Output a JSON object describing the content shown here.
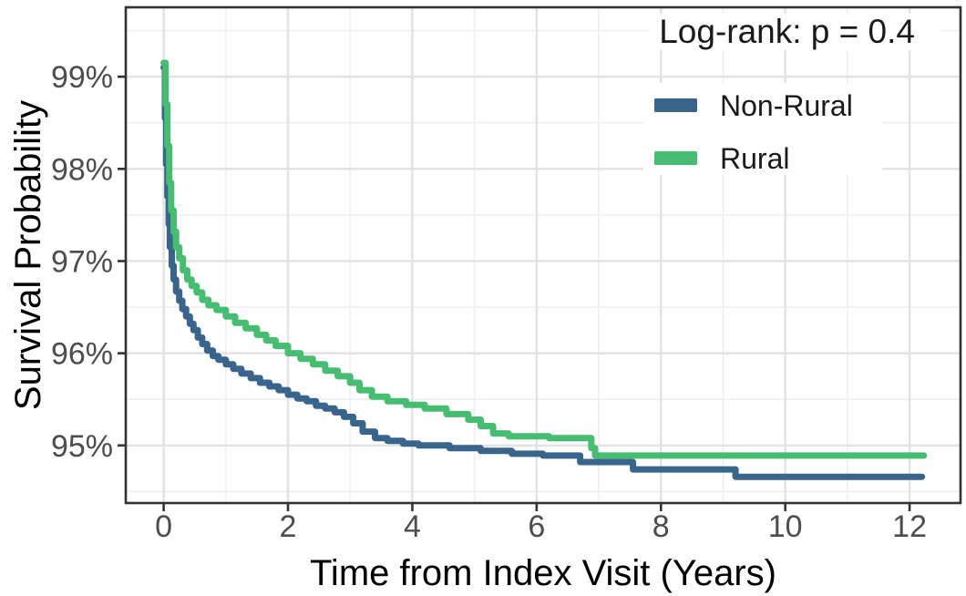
{
  "chart_data": {
    "type": "line",
    "subtype": "kaplan-meier-step",
    "title": "",
    "xlabel": "Time from Index Visit (Years)",
    "ylabel": "Survival Probability",
    "annotation": "Log-rank: p = 0.4",
    "legend_position": "inside-top-right",
    "grid": "major+minor",
    "x_ticks": [
      0,
      2,
      4,
      6,
      8,
      10,
      12
    ],
    "x_minor_ticks": [
      1,
      3,
      5,
      7,
      9,
      11
    ],
    "y_ticks": [
      95,
      96,
      97,
      98,
      99
    ],
    "y_tick_labels": [
      "95%",
      "96%",
      "97%",
      "98%",
      "99%"
    ],
    "y_minor_ticks": [
      94.5,
      95.5,
      96.5,
      97.5,
      98.5,
      99.5
    ],
    "xlim": [
      -0.61,
      12.82
    ],
    "ylim": [
      94.375,
      99.753
    ],
    "series": [
      {
        "name": "Non-Rural",
        "color": "#39648C",
        "points": [
          [
            0.0,
            99.1
          ],
          [
            0.02,
            98.55
          ],
          [
            0.04,
            98.05
          ],
          [
            0.06,
            97.7
          ],
          [
            0.08,
            97.4
          ],
          [
            0.1,
            97.15
          ],
          [
            0.13,
            96.95
          ],
          [
            0.16,
            96.8
          ],
          [
            0.2,
            96.67
          ],
          [
            0.25,
            96.57
          ],
          [
            0.3,
            96.48
          ],
          [
            0.36,
            96.4
          ],
          [
            0.42,
            96.32
          ],
          [
            0.48,
            96.25
          ],
          [
            0.55,
            96.17
          ],
          [
            0.62,
            96.1
          ],
          [
            0.7,
            96.03
          ],
          [
            0.79,
            95.97
          ],
          [
            0.88,
            95.93
          ],
          [
            1.0,
            95.88
          ],
          [
            1.12,
            95.83
          ],
          [
            1.25,
            95.78
          ],
          [
            1.4,
            95.73
          ],
          [
            1.55,
            95.68
          ],
          [
            1.7,
            95.64
          ],
          [
            1.85,
            95.6
          ],
          [
            2.0,
            95.55
          ],
          [
            2.15,
            95.51
          ],
          [
            2.3,
            95.48
          ],
          [
            2.45,
            95.43
          ],
          [
            2.6,
            95.4
          ],
          [
            2.75,
            95.36
          ],
          [
            2.9,
            95.31
          ],
          [
            3.05,
            95.24
          ],
          [
            3.2,
            95.15
          ],
          [
            3.4,
            95.08
          ],
          [
            3.6,
            95.05
          ],
          [
            3.85,
            95.02
          ],
          [
            4.1,
            95.0
          ],
          [
            4.6,
            94.97
          ],
          [
            5.1,
            94.94
          ],
          [
            5.6,
            94.91
          ],
          [
            6.1,
            94.89
          ],
          [
            6.7,
            94.82
          ],
          [
            7.55,
            94.74
          ],
          [
            9.2,
            94.66
          ],
          [
            12.2,
            94.66
          ]
        ]
      },
      {
        "name": "Rural",
        "color": "#47BD72",
        "points": [
          [
            0.0,
            99.15
          ],
          [
            0.03,
            98.7
          ],
          [
            0.06,
            98.25
          ],
          [
            0.09,
            97.85
          ],
          [
            0.12,
            97.55
          ],
          [
            0.16,
            97.32
          ],
          [
            0.2,
            97.15
          ],
          [
            0.25,
            97.03
          ],
          [
            0.31,
            96.9
          ],
          [
            0.38,
            96.8
          ],
          [
            0.45,
            96.73
          ],
          [
            0.53,
            96.66
          ],
          [
            0.62,
            96.58
          ],
          [
            0.72,
            96.52
          ],
          [
            0.85,
            96.47
          ],
          [
            1.0,
            96.4
          ],
          [
            1.15,
            96.33
          ],
          [
            1.32,
            96.27
          ],
          [
            1.5,
            96.2
          ],
          [
            1.65,
            96.14
          ],
          [
            1.8,
            96.08
          ],
          [
            2.0,
            96.0
          ],
          [
            2.2,
            95.94
          ],
          [
            2.4,
            95.88
          ],
          [
            2.6,
            95.81
          ],
          [
            2.8,
            95.75
          ],
          [
            3.0,
            95.68
          ],
          [
            3.15,
            95.6
          ],
          [
            3.35,
            95.53
          ],
          [
            3.6,
            95.48
          ],
          [
            3.9,
            95.44
          ],
          [
            4.2,
            95.4
          ],
          [
            4.55,
            95.34
          ],
          [
            4.9,
            95.28
          ],
          [
            5.1,
            95.21
          ],
          [
            5.3,
            95.13
          ],
          [
            5.55,
            95.1
          ],
          [
            6.2,
            95.08
          ],
          [
            6.88,
            94.97
          ],
          [
            6.94,
            94.89
          ],
          [
            12.23,
            94.89
          ]
        ]
      }
    ]
  },
  "colors": {
    "panel_background": "#FFFFFF",
    "panel_border": "#333333",
    "grid_major": "#E2E2E2",
    "grid_minor": "#EFEFEF",
    "tick_mark": "#333333",
    "tick_label": "#4D4D4D",
    "axis_title": "#000000",
    "legend_text": "#1A1A1A",
    "annotation_text": "#1A1A1A",
    "non_rural_line": "#39648C",
    "rural_line": "#47BD72"
  }
}
